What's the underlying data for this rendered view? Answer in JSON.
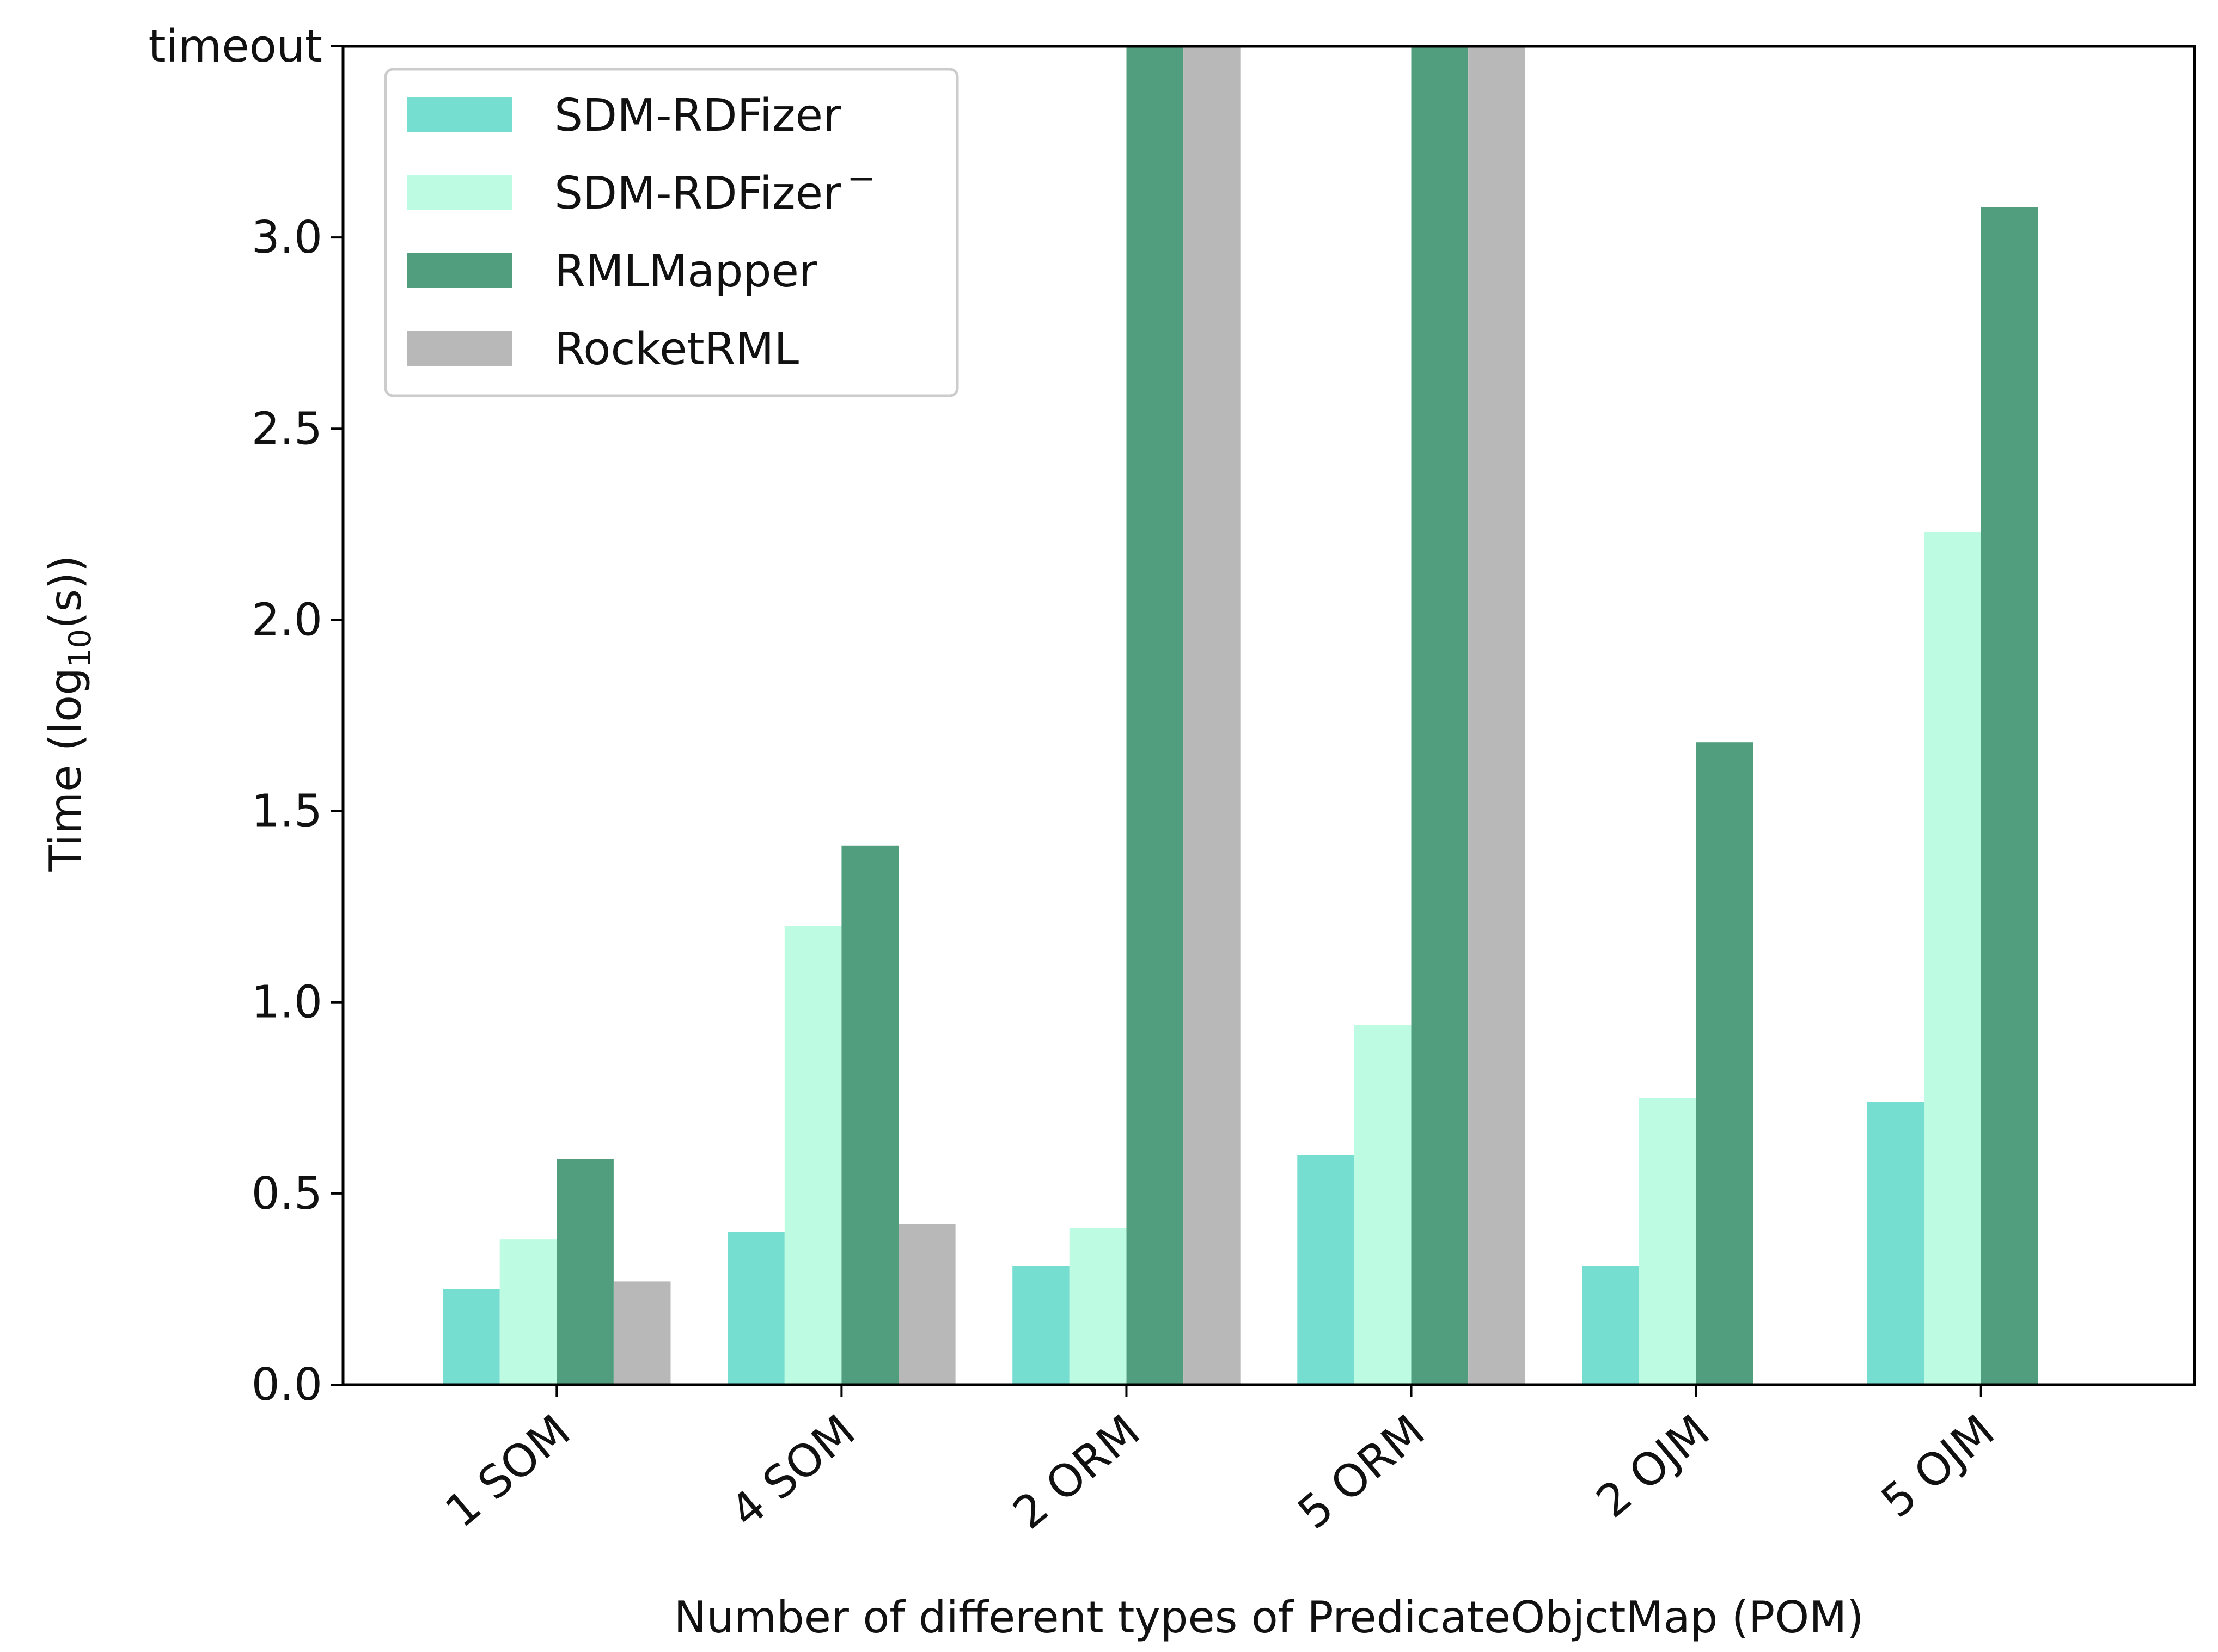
{
  "chart_data": {
    "type": "bar",
    "xlabel": "Number of different types of PredicateObjctMap (POM)",
    "ylabel": {
      "main": "Time (log",
      "sub": "10",
      "end": "(s))"
    },
    "ylim": [
      0,
      3.5
    ],
    "yticks": [
      {
        "value": 0.0,
        "label": "0.0"
      },
      {
        "value": 0.5,
        "label": "0.5"
      },
      {
        "value": 1.0,
        "label": "1.0"
      },
      {
        "value": 1.5,
        "label": "1.5"
      },
      {
        "value": 2.0,
        "label": "2.0"
      },
      {
        "value": 2.5,
        "label": "2.5"
      },
      {
        "value": 3.0,
        "label": "3.0"
      },
      {
        "value": 3.5,
        "label": "timeout"
      }
    ],
    "categories": [
      "1 SOM",
      "4 SOM",
      "2 ORM",
      "5 ORM",
      "2 OJM",
      "5 OJM"
    ],
    "series": [
      {
        "name": "SDM-RDFizer",
        "sup": "",
        "color": "#76ded0",
        "values": [
          0.25,
          0.4,
          0.31,
          0.6,
          0.31,
          0.74
        ]
      },
      {
        "name": "SDM-RDFizer",
        "sup": "−",
        "color": "#bdfce2",
        "values": [
          0.38,
          1.2,
          0.41,
          0.94,
          0.75,
          2.23
        ]
      },
      {
        "name": "RMLMapper",
        "sup": "",
        "color": "#519e7e",
        "values": [
          0.59,
          1.41,
          3.5,
          3.5,
          1.68,
          3.08
        ]
      },
      {
        "name": "RocketRML",
        "sup": "",
        "color": "#b8b8b8",
        "values": [
          0.27,
          0.42,
          3.5,
          3.5,
          null,
          null
        ]
      }
    ],
    "legend": "top-left",
    "grid": false
  }
}
